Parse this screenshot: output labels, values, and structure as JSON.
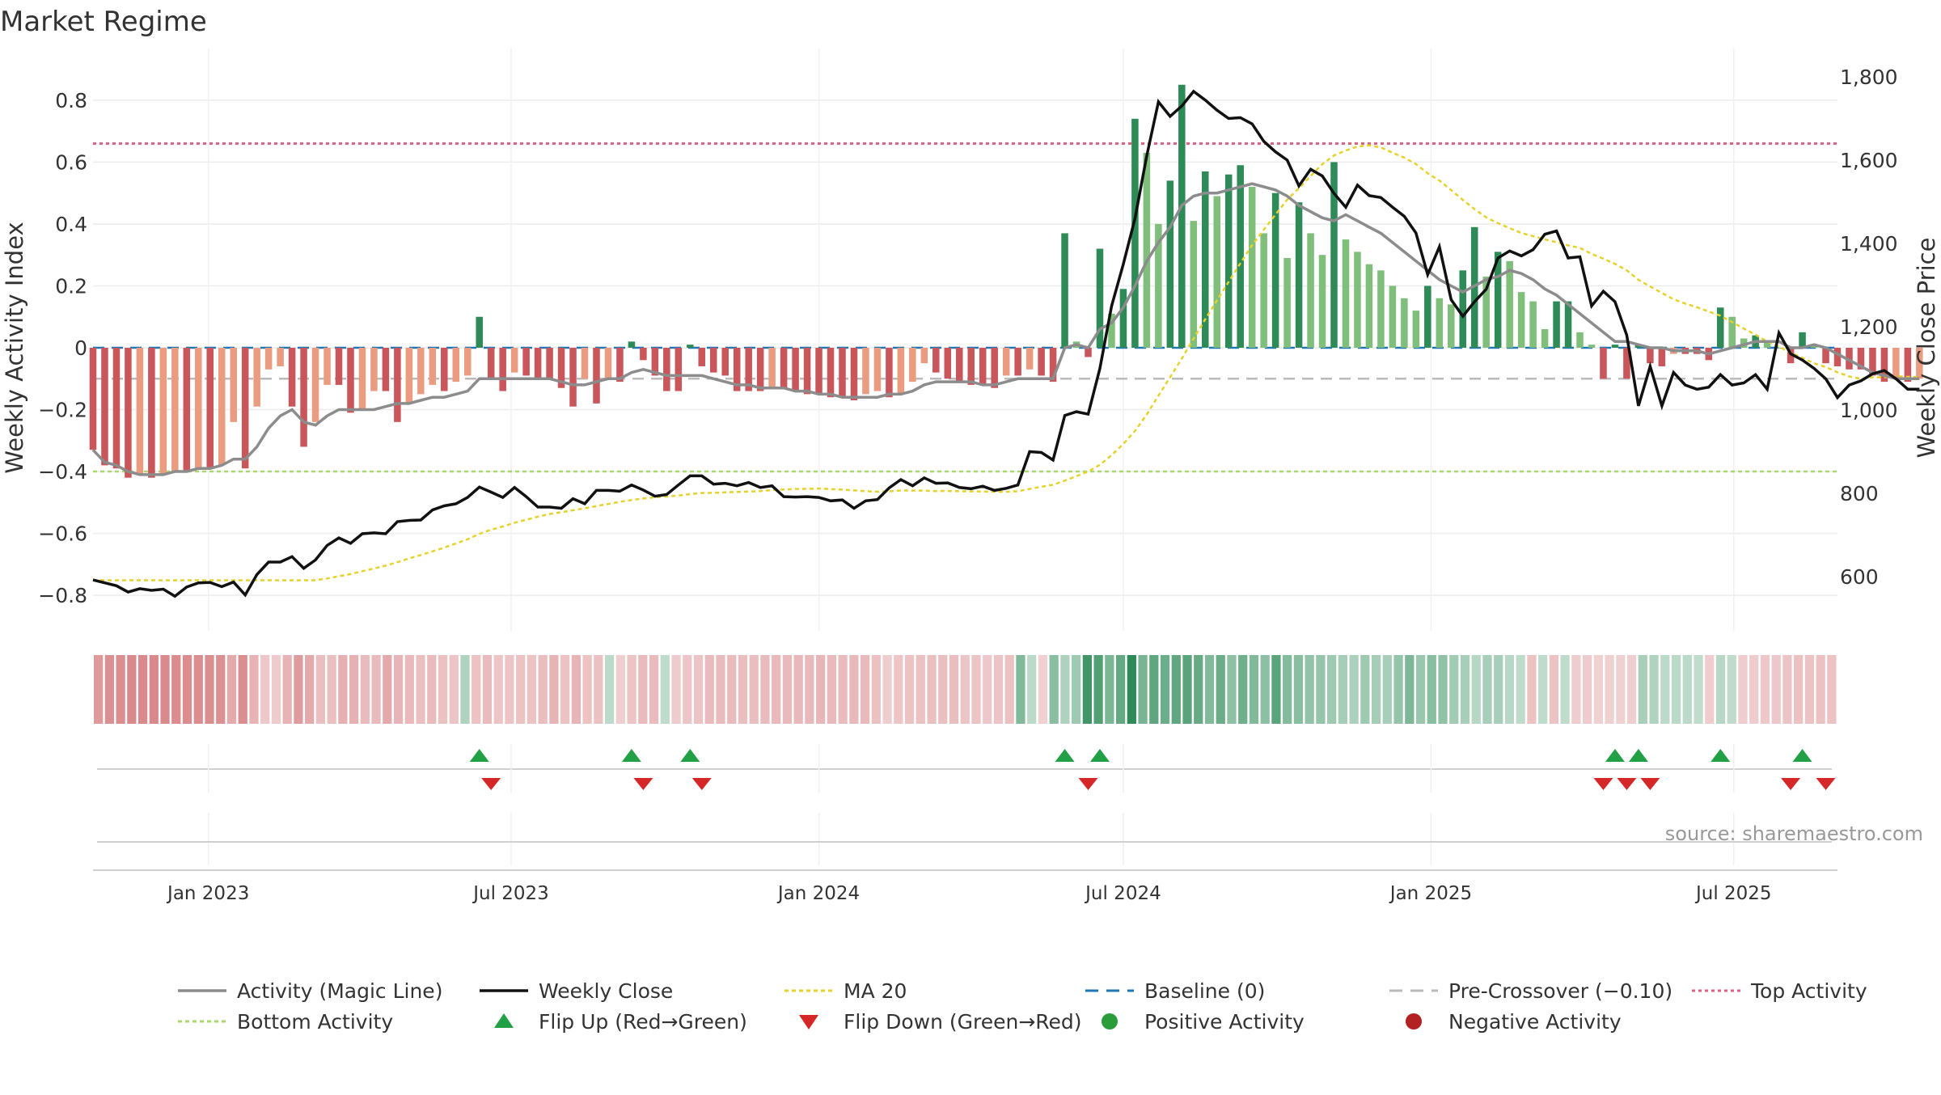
{
  "title": "Market Regime",
  "source": "source: sharemaestro.com",
  "chart_data": {
    "type": "bar",
    "title": "Market Regime",
    "left_axis": {
      "label": "Weekly Activity Index",
      "range": [
        -0.9,
        0.92
      ],
      "ticks": [
        0.8,
        0.6,
        0.4,
        0.2,
        0,
        -0.2,
        -0.4,
        -0.6,
        -0.8
      ],
      "tick_labels": [
        "0.8",
        "0.6",
        "0.4",
        "0.2",
        "0",
        "−0.2",
        "−0.4",
        "−0.6",
        "−0.8"
      ]
    },
    "right_axis": {
      "label": "Weekly Close Price",
      "range": [
        500,
        1800
      ],
      "ticks": [
        1800,
        1600,
        1400,
        1200,
        1000,
        800,
        600
      ],
      "tick_labels": [
        "1,800",
        "1,600",
        "1,400",
        "1,200",
        "1,000",
        "800",
        "600"
      ]
    },
    "x_axis": {
      "range": [
        "2022-10-24",
        "2025-09-01"
      ],
      "ticks": [
        "2023-01-01",
        "2023-07-01",
        "2024-01-01",
        "2024-07-01",
        "2025-01-01",
        "2025-07-01"
      ],
      "tick_labels": [
        "Jan 2023",
        "Jul 2023",
        "Jan 2024",
        "Jul 2024",
        "Jan 2025",
        "Jul 2025"
      ]
    },
    "reference_lines": {
      "top_activity": 0.66,
      "bottom_activity": -0.4,
      "pre_crossover": -0.1,
      "baseline": 0
    },
    "start_date": "2022-10-24",
    "activity": [
      -0.33,
      -0.38,
      -0.39,
      -0.42,
      -0.41,
      -0.42,
      -0.41,
      -0.4,
      -0.4,
      -0.39,
      -0.39,
      -0.38,
      -0.24,
      -0.39,
      -0.19,
      -0.07,
      -0.06,
      -0.19,
      -0.32,
      -0.24,
      -0.12,
      -0.12,
      -0.21,
      -0.2,
      -0.14,
      -0.14,
      -0.24,
      -0.18,
      -0.15,
      -0.12,
      -0.14,
      -0.11,
      -0.09,
      0.1,
      -0.1,
      -0.14,
      -0.08,
      -0.09,
      -0.1,
      -0.1,
      -0.13,
      -0.19,
      -0.1,
      -0.18,
      -0.1,
      -0.11,
      0.02,
      -0.04,
      -0.09,
      -0.14,
      -0.14,
      0.01,
      -0.06,
      -0.08,
      -0.09,
      -0.14,
      -0.14,
      -0.14,
      -0.13,
      -0.13,
      -0.14,
      -0.15,
      -0.15,
      -0.16,
      -0.16,
      -0.17,
      -0.15,
      -0.14,
      -0.16,
      -0.15,
      -0.11,
      -0.05,
      -0.08,
      -0.1,
      -0.11,
      -0.12,
      -0.12,
      -0.13,
      -0.09,
      -0.09,
      -0.07,
      -0.09,
      -0.11,
      0.37,
      0.02,
      -0.03,
      0.32,
      0.11,
      0.19,
      0.74,
      0.63,
      0.4,
      0.54,
      0.85,
      0.41,
      0.57,
      0.49,
      0.56,
      0.59,
      0.52,
      0.37,
      0.5,
      0.29,
      0.47,
      0.37,
      0.3,
      0.6,
      0.35,
      0.31,
      0.27,
      0.25,
      0.2,
      0.16,
      0.12,
      0.2,
      0.16,
      0.14,
      0.25,
      0.39,
      0.23,
      0.31,
      0.28,
      0.18,
      0.15,
      0.06,
      0.15,
      0.15,
      0.05,
      0.01,
      -0.1,
      0.01,
      -0.1,
      0.01,
      -0.05,
      -0.06,
      -0.02,
      -0.02,
      -0.02,
      -0.04,
      0.13,
      0.1,
      0.03,
      0.04,
      0.02,
      0.0,
      -0.05,
      0.05,
      0.01,
      -0.05,
      -0.06,
      -0.07,
      -0.07,
      -0.09,
      -0.11,
      -0.1,
      -0.11,
      -0.1
    ],
    "magic_line": [
      -0.33,
      -0.37,
      -0.38,
      -0.4,
      -0.41,
      -0.41,
      -0.41,
      -0.4,
      -0.4,
      -0.39,
      -0.39,
      -0.38,
      -0.36,
      -0.36,
      -0.32,
      -0.26,
      -0.22,
      -0.2,
      -0.24,
      -0.25,
      -0.22,
      -0.2,
      -0.2,
      -0.2,
      -0.2,
      -0.19,
      -0.18,
      -0.18,
      -0.17,
      -0.16,
      -0.16,
      -0.15,
      -0.14,
      -0.1,
      -0.1,
      -0.1,
      -0.1,
      -0.1,
      -0.1,
      -0.1,
      -0.11,
      -0.12,
      -0.12,
      -0.11,
      -0.1,
      -0.1,
      -0.08,
      -0.07,
      -0.08,
      -0.09,
      -0.09,
      -0.09,
      -0.09,
      -0.1,
      -0.11,
      -0.12,
      -0.12,
      -0.13,
      -0.13,
      -0.13,
      -0.14,
      -0.14,
      -0.15,
      -0.15,
      -0.16,
      -0.16,
      -0.16,
      -0.16,
      -0.15,
      -0.15,
      -0.14,
      -0.12,
      -0.11,
      -0.11,
      -0.11,
      -0.11,
      -0.12,
      -0.12,
      -0.11,
      -0.1,
      -0.1,
      -0.1,
      -0.1,
      0.0,
      0.01,
      0.0,
      0.06,
      0.08,
      0.13,
      0.2,
      0.28,
      0.34,
      0.39,
      0.46,
      0.49,
      0.5,
      0.5,
      0.51,
      0.52,
      0.53,
      0.52,
      0.51,
      0.49,
      0.46,
      0.44,
      0.42,
      0.41,
      0.43,
      0.41,
      0.39,
      0.37,
      0.34,
      0.31,
      0.28,
      0.25,
      0.22,
      0.2,
      0.18,
      0.2,
      0.22,
      0.23,
      0.25,
      0.24,
      0.22,
      0.19,
      0.17,
      0.14,
      0.11,
      0.08,
      0.05,
      0.02,
      0.02,
      0.01,
      0.0,
      0.0,
      -0.01,
      -0.01,
      -0.01,
      -0.02,
      -0.01,
      0.0,
      0.01,
      0.02,
      0.02,
      0.02,
      0.0,
      0.0,
      0.01,
      0.0,
      -0.02,
      -0.04,
      -0.06,
      -0.08,
      -0.09,
      -0.1,
      -0.1,
      -0.1
    ],
    "weekly_close": [
      592,
      585,
      578,
      563,
      571,
      567,
      570,
      553,
      575,
      585,
      586,
      576,
      587,
      556,
      605,
      635,
      635,
      648,
      620,
      640,
      675,
      693,
      680,
      703,
      705,
      703,
      732,
      735,
      736,
      760,
      770,
      775,
      790,
      815,
      803,
      790,
      814,
      792,
      767,
      767,
      764,
      787,
      775,
      807,
      807,
      805,
      820,
      808,
      793,
      797,
      820,
      842,
      842,
      822,
      824,
      818,
      826,
      814,
      818,
      792,
      791,
      792,
      790,
      782,
      784,
      764,
      782,
      785,
      813,
      833,
      818,
      837,
      824,
      825,
      814,
      811,
      817,
      807,
      812,
      820,
      900,
      898,
      880,
      987,
      996,
      990,
      1100,
      1250,
      1350,
      1460,
      1610,
      1740,
      1705,
      1730,
      1765,
      1744,
      1720,
      1700,
      1702,
      1687,
      1645,
      1620,
      1600,
      1538,
      1578,
      1562,
      1520,
      1487,
      1540,
      1515,
      1510,
      1487,
      1465,
      1425,
      1325,
      1392,
      1265,
      1225,
      1260,
      1290,
      1365,
      1382,
      1370,
      1385,
      1422,
      1430,
      1365,
      1368,
      1250,
      1285,
      1260,
      1180,
      1010,
      1105,
      1010,
      1090,
      1060,
      1050,
      1055,
      1085,
      1060,
      1065,
      1085,
      1050,
      1185,
      1135,
      1120,
      1100,
      1075,
      1030,
      1060,
      1070,
      1087,
      1095,
      1075,
      1050,
      1050,
      1025,
      1010,
      1005,
      1015,
      1015,
      1025
    ]
  },
  "legend": [
    {
      "label": "Activity (Magic Line)"
    },
    {
      "label": "Weekly Close"
    },
    {
      "label": "MA 20"
    },
    {
      "label": "Baseline (0)"
    },
    {
      "label": "Pre-Crossover (−0.10)"
    },
    {
      "label": "Top Activity"
    },
    {
      "label": "Bottom Activity"
    },
    {
      "label": "Flip Up (Red→Green)"
    },
    {
      "label": "Flip Down (Green→Red)"
    },
    {
      "label": "Positive Activity"
    },
    {
      "label": "Negative Activity"
    }
  ],
  "colors": {
    "green_strong": "#2e8b57",
    "green_light": "#7fbf7b",
    "red_strong": "#c9565a",
    "red_light": "#ea9c80",
    "magic_line": "#8c8c8c",
    "close_line": "#111111",
    "ma20": "#e6d22a",
    "baseline": "#1f77b4",
    "pre_crossover": "#bbbbbb",
    "top_activity": "#e0607e",
    "bottom_activity": "#a9d86e",
    "flip_up": "#22a045",
    "flip_down": "#d62728",
    "positive": "#2a9d3a",
    "negative": "#b22222"
  }
}
